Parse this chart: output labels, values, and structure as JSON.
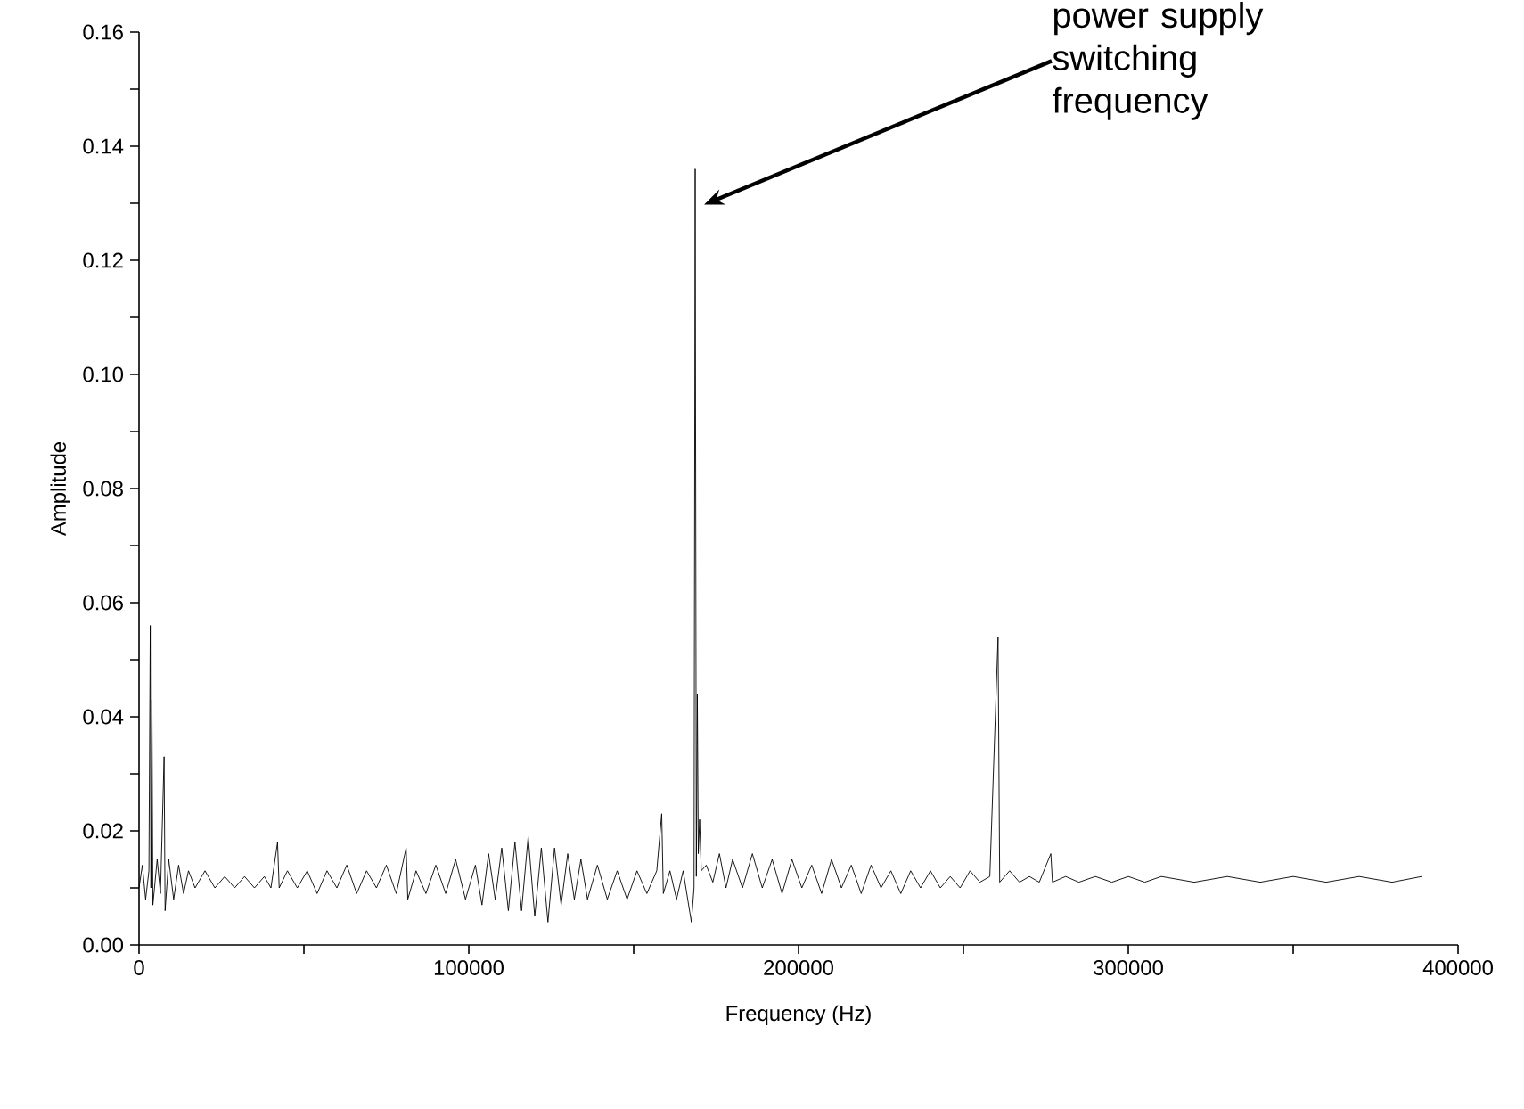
{
  "chart_data": {
    "type": "line",
    "xlabel": "Frequency (Hz)",
    "ylabel": "Amplitude",
    "annotations": [
      "power supply switching frequency"
    ],
    "xlim": [
      0,
      400000
    ],
    "xticks": [
      0,
      {
        "value": 50000,
        "label": null
      },
      100000,
      {
        "value": 150000,
        "label": null
      },
      200000,
      {
        "value": 250000,
        "label": null
      },
      300000,
      {
        "value": 350000,
        "label": null
      },
      400000
    ],
    "ylim": [
      0,
      0.16
    ],
    "yticks": [
      {
        "value": 0,
        "label": "0.00"
      },
      {
        "value": 0.01,
        "label": null
      },
      {
        "value": 0.02,
        "label": "0.02"
      },
      {
        "value": 0.03,
        "label": null
      },
      {
        "value": 0.04,
        "label": "0.04"
      },
      {
        "value": 0.05,
        "label": null
      },
      {
        "value": 0.06,
        "label": "0.06"
      },
      {
        "value": 0.07,
        "label": null
      },
      {
        "value": 0.08,
        "label": "0.08"
      },
      {
        "value": 0.09,
        "label": null
      },
      {
        "value": 0.1,
        "label": "0.10"
      },
      {
        "value": 0.11,
        "label": null
      },
      {
        "value": 0.12,
        "label": "0.12"
      },
      {
        "value": 0.13,
        "label": null
      },
      {
        "value": 0.14,
        "label": "0.14"
      },
      {
        "value": 0.15,
        "label": null
      },
      {
        "value": 0.16,
        "label": "0.16"
      }
    ],
    "grid": false,
    "marker": "none",
    "line_style": "solid",
    "series": [
      {
        "color": "#000000",
        "x": [
          0,
          1000,
          2000,
          3000,
          3400,
          3600,
          3900,
          4200,
          5500,
          6500,
          7600,
          7900,
          9000,
          10500,
          12000,
          13500,
          15000,
          17000,
          20000,
          23000,
          26000,
          29000,
          32000,
          35000,
          38000,
          40000,
          42000,
          42500,
          45000,
          48000,
          51000,
          54000,
          57000,
          60000,
          63000,
          66000,
          69000,
          72000,
          75000,
          78000,
          81000,
          81500,
          84000,
          87000,
          90000,
          93000,
          96000,
          99000,
          102000,
          104000,
          106000,
          108000,
          110000,
          112000,
          114000,
          116000,
          118000,
          120000,
          122000,
          124000,
          126000,
          128000,
          130000,
          132000,
          134000,
          136000,
          139000,
          142000,
          145000,
          148000,
          151000,
          154000,
          157000,
          158500,
          159000,
          161000,
          163000,
          165000,
          167500,
          168300,
          168650,
          169000,
          169300,
          169600,
          170000,
          170500,
          172000,
          174000,
          176000,
          178000,
          180000,
          183000,
          186000,
          189000,
          192000,
          195000,
          198000,
          201000,
          204000,
          207000,
          210000,
          213000,
          216000,
          219000,
          222000,
          225000,
          228000,
          231000,
          234000,
          237000,
          240000,
          243000,
          246000,
          249000,
          252000,
          255000,
          258000,
          260500,
          261000,
          264000,
          267000,
          270000,
          273000,
          276500,
          277000,
          281000,
          285000,
          290000,
          295000,
          300000,
          305000,
          310000,
          320000,
          330000,
          340000,
          350000,
          360000,
          370000,
          380000,
          389000
        ],
        "values": [
          0.01,
          0.014,
          0.008,
          0.013,
          0.056,
          0.01,
          0.043,
          0.007,
          0.015,
          0.009,
          0.033,
          0.006,
          0.015,
          0.008,
          0.014,
          0.009,
          0.013,
          0.01,
          0.013,
          0.01,
          0.012,
          0.01,
          0.012,
          0.01,
          0.012,
          0.01,
          0.018,
          0.01,
          0.013,
          0.01,
          0.013,
          0.009,
          0.013,
          0.01,
          0.014,
          0.009,
          0.013,
          0.01,
          0.014,
          0.009,
          0.017,
          0.008,
          0.013,
          0.009,
          0.014,
          0.009,
          0.015,
          0.008,
          0.014,
          0.007,
          0.016,
          0.008,
          0.017,
          0.006,
          0.018,
          0.006,
          0.019,
          0.005,
          0.017,
          0.004,
          0.017,
          0.007,
          0.016,
          0.008,
          0.015,
          0.008,
          0.014,
          0.008,
          0.013,
          0.008,
          0.013,
          0.009,
          0.013,
          0.023,
          0.009,
          0.013,
          0.008,
          0.013,
          0.004,
          0.01,
          0.136,
          0.012,
          0.044,
          0.016,
          0.022,
          0.013,
          0.014,
          0.011,
          0.016,
          0.01,
          0.015,
          0.01,
          0.016,
          0.01,
          0.015,
          0.009,
          0.015,
          0.01,
          0.014,
          0.009,
          0.015,
          0.01,
          0.014,
          0.009,
          0.014,
          0.01,
          0.013,
          0.009,
          0.013,
          0.01,
          0.013,
          0.01,
          0.012,
          0.01,
          0.013,
          0.011,
          0.012,
          0.054,
          0.011,
          0.013,
          0.011,
          0.012,
          0.011,
          0.016,
          0.011,
          0.012,
          0.011,
          0.012,
          0.011,
          0.012,
          0.011,
          0.012,
          0.011,
          0.012,
          0.011,
          0.012,
          0.011,
          0.012,
          0.011,
          0.012
        ]
      }
    ]
  }
}
